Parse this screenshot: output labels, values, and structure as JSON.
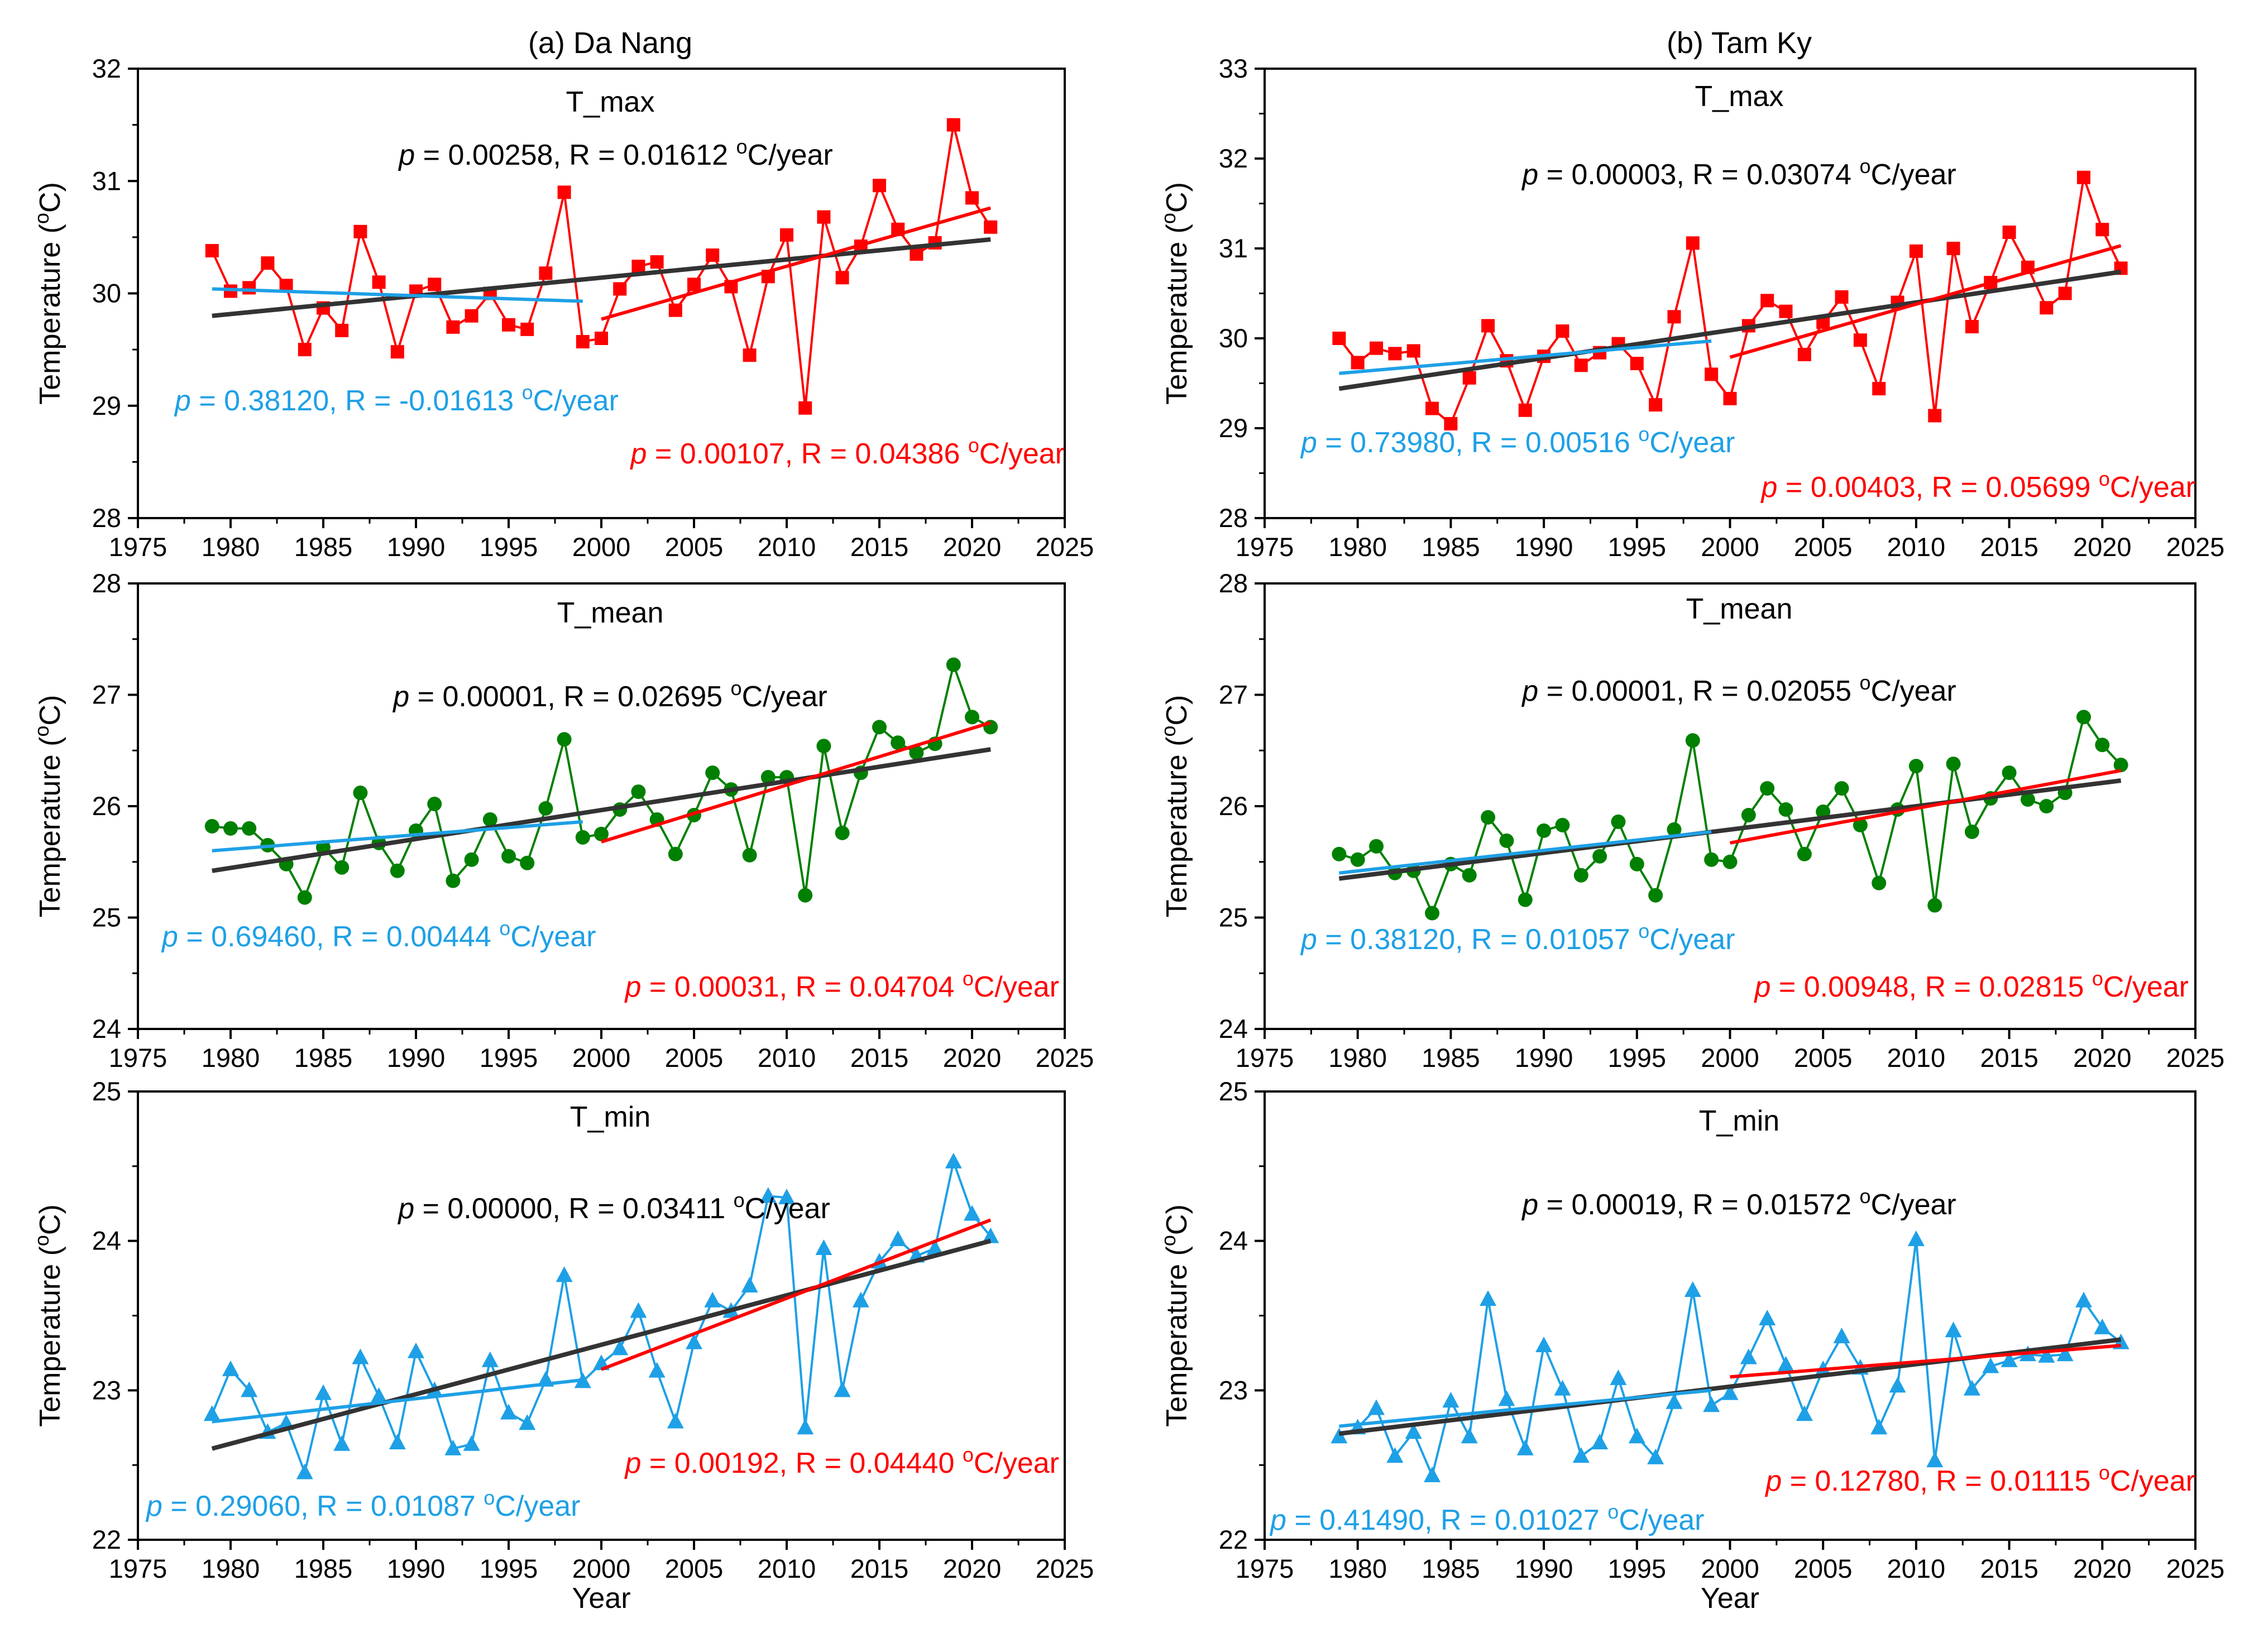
{
  "figure": {
    "xlabel": "Year",
    "ylabel_text": "Temperature (",
    "ylabel_sup": "o",
    "ylabel_unit": "C)",
    "x_range": [
      1975,
      2025
    ],
    "x_ticks": [
      1975,
      1980,
      1985,
      1990,
      1995,
      2000,
      2005,
      2010,
      2015,
      2020,
      2025
    ],
    "colors": {
      "tmax": "#ff0000",
      "tmean": "#008000",
      "tmin": "#1ea0e6",
      "trend_all": "#333333",
      "trend_early": "#1ea0e6",
      "trend_late": "#ff0000"
    }
  },
  "chart_data": [
    {
      "site": "(a) Da Nang",
      "variable": "T_max",
      "type": "line",
      "marker": "square",
      "x": [
        1979,
        1980,
        1981,
        1982,
        1983,
        1984,
        1985,
        1986,
        1987,
        1988,
        1989,
        1990,
        1991,
        1992,
        1993,
        1994,
        1995,
        1996,
        1997,
        1998,
        1999,
        2000,
        2001,
        2002,
        2003,
        2004,
        2005,
        2006,
        2007,
        2008,
        2009,
        2010,
        2011,
        2012,
        2013,
        2014,
        2015,
        2016,
        2017,
        2018,
        2019,
        2020,
        2021
      ],
      "values": [
        30.38,
        30.02,
        30.05,
        30.27,
        30.07,
        29.5,
        29.87,
        29.67,
        30.55,
        30.1,
        29.48,
        30.02,
        30.08,
        29.7,
        29.8,
        30.0,
        29.72,
        29.68,
        30.18,
        30.9,
        29.57,
        29.6,
        30.04,
        30.24,
        30.28,
        29.85,
        30.08,
        30.34,
        30.06,
        29.45,
        30.15,
        30.52,
        28.98,
        30.68,
        30.14,
        30.42,
        30.96,
        30.57,
        30.35,
        30.45,
        31.5,
        30.85,
        30.59
      ],
      "ylim": [
        28,
        32
      ],
      "yticks": [
        28,
        29,
        30,
        31,
        32
      ],
      "trends": [
        {
          "name": "1979-2021",
          "x": [
            1979,
            2021
          ],
          "y": [
            29.8,
            30.48
          ],
          "p": "0.00258",
          "R": "0.01612",
          "unit": "C/year"
        },
        {
          "name": "1979-1999",
          "x": [
            1979,
            1999
          ],
          "y": [
            30.04,
            29.93
          ],
          "p": "0.38120",
          "R": "-0.01613",
          "unit": "C/year"
        },
        {
          "name": "2000-2021",
          "x": [
            2000,
            2021
          ],
          "y": [
            29.77,
            30.76
          ],
          "p": "0.00107",
          "R": "0.04386",
          "unit": "C/year"
        }
      ]
    },
    {
      "site": "(a) Da Nang",
      "variable": "T_mean",
      "type": "line",
      "marker": "circle",
      "x": [
        1979,
        1980,
        1981,
        1982,
        1983,
        1984,
        1985,
        1986,
        1987,
        1988,
        1989,
        1990,
        1991,
        1992,
        1993,
        1994,
        1995,
        1996,
        1997,
        1998,
        1999,
        2000,
        2001,
        2002,
        2003,
        2004,
        2005,
        2006,
        2007,
        2008,
        2009,
        2010,
        2011,
        2012,
        2013,
        2014,
        2015,
        2016,
        2017,
        2018,
        2019,
        2020,
        2021
      ],
      "values": [
        25.82,
        25.8,
        25.8,
        25.65,
        25.48,
        25.18,
        25.63,
        25.45,
        26.12,
        25.67,
        25.42,
        25.78,
        26.02,
        25.33,
        25.52,
        25.88,
        25.55,
        25.49,
        25.98,
        26.6,
        25.72,
        25.75,
        25.97,
        26.13,
        25.88,
        25.57,
        25.92,
        26.3,
        26.15,
        25.56,
        26.26,
        26.26,
        25.2,
        26.54,
        25.76,
        26.3,
        26.71,
        26.57,
        26.48,
        26.56,
        27.27,
        26.8,
        26.71
      ],
      "ylim": [
        24,
        28
      ],
      "yticks": [
        24,
        25,
        26,
        27,
        28
      ],
      "trends": [
        {
          "name": "1979-2021",
          "x": [
            1979,
            2021
          ],
          "y": [
            25.42,
            26.51
          ],
          "p": "0.00001",
          "R": "0.02695",
          "unit": "C/year"
        },
        {
          "name": "1979-1999",
          "x": [
            1979,
            1999
          ],
          "y": [
            25.6,
            25.86
          ],
          "p": "0.69460",
          "R": "0.00444",
          "unit": "C/year"
        },
        {
          "name": "2000-2021",
          "x": [
            2000,
            2021
          ],
          "y": [
            25.68,
            26.75
          ],
          "p": "0.00031",
          "R": "0.04704",
          "unit": "C/year"
        }
      ]
    },
    {
      "site": "(a) Da Nang",
      "variable": "T_min",
      "type": "line",
      "marker": "triangle",
      "x": [
        1979,
        1980,
        1981,
        1982,
        1983,
        1984,
        1985,
        1986,
        1987,
        1988,
        1989,
        1990,
        1991,
        1992,
        1993,
        1994,
        1995,
        1996,
        1997,
        1998,
        1999,
        2000,
        2001,
        2002,
        2003,
        2004,
        2005,
        2006,
        2007,
        2008,
        2009,
        2010,
        2011,
        2012,
        2013,
        2014,
        2015,
        2016,
        2017,
        2018,
        2019,
        2020,
        2021
      ],
      "values": [
        22.84,
        23.14,
        23.0,
        22.72,
        22.78,
        22.45,
        22.98,
        22.64,
        23.22,
        22.96,
        22.65,
        23.26,
        23.0,
        22.61,
        22.64,
        23.2,
        22.85,
        22.78,
        23.07,
        23.77,
        23.06,
        23.18,
        23.28,
        23.53,
        23.13,
        22.79,
        23.32,
        23.6,
        23.53,
        23.7,
        24.3,
        24.29,
        22.75,
        23.95,
        23.0,
        23.6,
        23.86,
        24.01,
        23.9,
        23.95,
        24.53,
        24.18,
        24.03
      ],
      "ylim": [
        22,
        25
      ],
      "yticks": [
        22,
        23,
        24,
        25
      ],
      "trends": [
        {
          "name": "1979-2021",
          "x": [
            1979,
            2021
          ],
          "y": [
            22.61,
            24.0
          ],
          "p": "0.00000",
          "R": "0.03411",
          "unit": "C/year"
        },
        {
          "name": "1979-1999",
          "x": [
            1979,
            1999
          ],
          "y": [
            22.79,
            23.07
          ],
          "p": "0.29060",
          "R": "0.01087",
          "unit": "C/year"
        },
        {
          "name": "2000-2021",
          "x": [
            2000,
            2021
          ],
          "y": [
            23.14,
            24.14
          ],
          "p": "0.00192",
          "R": "0.04440",
          "unit": "C/year"
        }
      ]
    },
    {
      "site": "(b) Tam Ky",
      "variable": "T_max",
      "type": "line",
      "marker": "square",
      "x": [
        1979,
        1980,
        1981,
        1982,
        1983,
        1984,
        1985,
        1986,
        1987,
        1988,
        1989,
        1990,
        1991,
        1992,
        1993,
        1994,
        1995,
        1996,
        1997,
        1998,
        1999,
        2000,
        2001,
        2002,
        2003,
        2004,
        2005,
        2006,
        2007,
        2008,
        2009,
        2010,
        2011,
        2012,
        2013,
        2014,
        2015,
        2016,
        2017,
        2018,
        2019,
        2020,
        2021
      ],
      "values": [
        30.0,
        29.73,
        29.89,
        29.83,
        29.86,
        29.22,
        29.05,
        29.56,
        30.14,
        29.75,
        29.2,
        29.8,
        30.08,
        29.7,
        29.84,
        29.94,
        29.72,
        29.26,
        30.24,
        31.06,
        29.6,
        29.33,
        30.14,
        30.42,
        30.3,
        29.82,
        30.18,
        30.46,
        29.98,
        29.44,
        30.4,
        30.97,
        29.14,
        31.0,
        30.13,
        30.62,
        31.18,
        30.79,
        30.34,
        30.5,
        31.79,
        31.21,
        30.78
      ],
      "ylim": [
        28,
        33
      ],
      "yticks": [
        28,
        29,
        30,
        31,
        32,
        33
      ],
      "trends": [
        {
          "name": "1979-2021",
          "x": [
            1979,
            2021
          ],
          "y": [
            29.44,
            30.74
          ],
          "p": "0.00003",
          "R": "0.03074",
          "unit": "C/year"
        },
        {
          "name": "1979-1999",
          "x": [
            1979,
            1999
          ],
          "y": [
            29.61,
            29.97
          ],
          "p": "0.73980",
          "R": "0.00516",
          "unit": "C/year"
        },
        {
          "name": "2000-2021",
          "x": [
            2000,
            2021
          ],
          "y": [
            29.79,
            31.03
          ],
          "p": "0.00403",
          "R": "0.05699",
          "unit": "C/year"
        }
      ]
    },
    {
      "site": "(b) Tam Ky",
      "variable": "T_mean",
      "type": "line",
      "marker": "circle",
      "x": [
        1979,
        1980,
        1981,
        1982,
        1983,
        1984,
        1985,
        1986,
        1987,
        1988,
        1989,
        1990,
        1991,
        1992,
        1993,
        1994,
        1995,
        1996,
        1997,
        1998,
        1999,
        2000,
        2001,
        2002,
        2003,
        2004,
        2005,
        2006,
        2007,
        2008,
        2009,
        2010,
        2011,
        2012,
        2013,
        2014,
        2015,
        2016,
        2017,
        2018,
        2019,
        2020,
        2021
      ],
      "values": [
        25.57,
        25.52,
        25.64,
        25.4,
        25.42,
        25.04,
        25.48,
        25.38,
        25.9,
        25.69,
        25.16,
        25.78,
        25.83,
        25.38,
        25.55,
        25.86,
        25.48,
        25.2,
        25.79,
        26.59,
        25.52,
        25.5,
        25.92,
        26.16,
        25.97,
        25.57,
        25.95,
        26.16,
        25.83,
        25.31,
        25.97,
        26.36,
        25.11,
        26.38,
        25.77,
        26.07,
        26.3,
        26.06,
        26.0,
        26.12,
        26.8,
        26.55,
        26.37
      ],
      "ylim": [
        24,
        28
      ],
      "yticks": [
        24,
        25,
        26,
        27,
        28
      ],
      "trends": [
        {
          "name": "1979-2021",
          "x": [
            1979,
            2021
          ],
          "y": [
            25.35,
            26.23
          ],
          "p": "0.00001",
          "R": "0.02055",
          "unit": "C/year"
        },
        {
          "name": "1979-1999",
          "x": [
            1979,
            1999
          ],
          "y": [
            25.4,
            25.77
          ],
          "p": "0.38120",
          "R": "0.01057",
          "unit": "C/year"
        },
        {
          "name": "2000-2021",
          "x": [
            2000,
            2021
          ],
          "y": [
            25.67,
            26.32
          ],
          "p": "0.00948",
          "R": "0.02815",
          "unit": "C/year"
        }
      ]
    },
    {
      "site": "(b) Tam Ky",
      "variable": "T_min",
      "type": "line",
      "marker": "triangle",
      "x": [
        1979,
        1980,
        1981,
        1982,
        1983,
        1984,
        1985,
        1986,
        1987,
        1988,
        1989,
        1990,
        1991,
        1992,
        1993,
        1994,
        1995,
        1996,
        1997,
        1998,
        1999,
        2000,
        2001,
        2002,
        2003,
        2004,
        2005,
        2006,
        2007,
        2008,
        2009,
        2010,
        2011,
        2012,
        2013,
        2014,
        2015,
        2016,
        2017,
        2018,
        2019,
        2020,
        2021
      ],
      "values": [
        22.69,
        22.75,
        22.88,
        22.56,
        22.72,
        22.43,
        22.93,
        22.69,
        23.61,
        22.94,
        22.61,
        23.3,
        23.01,
        22.56,
        22.65,
        23.08,
        22.69,
        22.55,
        22.92,
        23.67,
        22.9,
        22.98,
        23.22,
        23.48,
        23.17,
        22.84,
        23.14,
        23.36,
        23.15,
        22.75,
        23.03,
        24.01,
        22.53,
        23.4,
        23.01,
        23.16,
        23.2,
        23.24,
        23.23,
        23.24,
        23.6,
        23.42,
        23.32
      ],
      "ylim": [
        22,
        25
      ],
      "yticks": [
        22,
        23,
        24,
        25
      ],
      "trends": [
        {
          "name": "1979-2021",
          "x": [
            1979,
            2021
          ],
          "y": [
            22.71,
            23.34
          ],
          "p": "0.00019",
          "R": "0.01572",
          "unit": "C/year"
        },
        {
          "name": "1979-1999",
          "x": [
            1979,
            1999
          ],
          "y": [
            22.76,
            23.0
          ],
          "p": "0.41490",
          "R": "0.01027",
          "unit": "C/year"
        },
        {
          "name": "2000-2021",
          "x": [
            2000,
            2021
          ],
          "y": [
            23.09,
            23.3
          ],
          "p": "0.12780",
          "R": "0.01115",
          "unit": "C/year"
        }
      ]
    }
  ]
}
